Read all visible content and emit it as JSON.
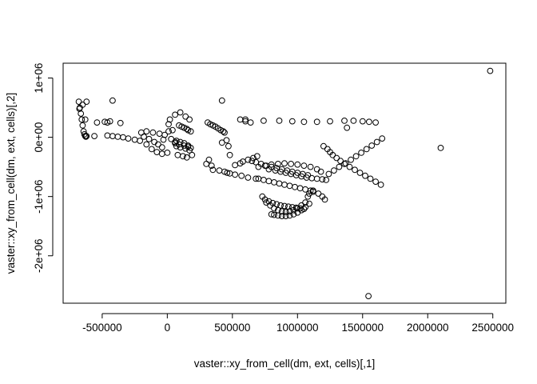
{
  "chart_data": {
    "type": "scatter",
    "title": "",
    "xlabel": "vaster::xy_from_cell(dm, ext, cells)[,1]",
    "ylabel": "vaster::xy_from_cell(dm, ext, cells)[,2]",
    "xlim": [
      -800000,
      2600000
    ],
    "ylim": [
      -2800000,
      1250000
    ],
    "xticks": [
      -500000,
      0,
      500000,
      1000000,
      1500000,
      2000000,
      2500000
    ],
    "xtick_labels": [
      "-500000",
      "0",
      "500000",
      "1000000",
      "1500000",
      "2000000",
      "2500000"
    ],
    "yticks": [
      -2000000,
      -1000000,
      0,
      1000000
    ],
    "ytick_labels": [
      "-2e+06",
      "-1e+06",
      "0e+00",
      "1e+06"
    ],
    "marker": "open-circle",
    "grid": false,
    "series": [
      {
        "x": [
          -680000,
          -672000,
          -664000,
          -657000,
          -650000,
          -643000,
          -637000,
          -630000,
          -625000,
          -620000,
          -630000,
          -650000,
          -675000,
          -560000,
          -460000,
          -420000,
          -380000,
          -340000,
          -300000,
          -250000,
          -210000,
          -160000,
          -120000,
          -80000,
          -40000,
          0,
          -40000,
          -70000,
          -100000,
          -140000,
          -180000,
          -200000,
          -160000,
          -110000,
          -60000,
          -20000,
          10000,
          40000,
          20000,
          60000,
          100000,
          140000,
          170000,
          90000,
          110000,
          130000,
          150000,
          160000,
          180000,
          70000,
          100000,
          130000,
          160000,
          180000,
          80000,
          120000,
          150000,
          190000,
          70000,
          100000,
          140000,
          170000,
          60000,
          90000,
          130000,
          160000,
          310000,
          330000,
          350000,
          370000,
          390000,
          410000,
          430000,
          440000,
          455000,
          470000,
          480000,
          320000,
          300000,
          340000,
          520000,
          560000,
          580000,
          620000,
          660000,
          690000,
          350000,
          400000,
          440000,
          460000,
          480000,
          520000,
          570000,
          620000,
          680000,
          560000,
          600000,
          640000,
          700000,
          750000,
          800000,
          850000,
          900000,
          950000,
          1000000,
          1050000,
          1100000,
          1150000,
          1180000,
          1240000,
          1280000,
          1320000,
          1370000,
          1410000,
          1450000,
          1490000,
          1530000,
          1570000,
          1610000,
          1650000,
          1200000,
          1230000,
          1250000,
          1270000,
          1300000,
          1330000,
          1360000,
          1400000,
          1440000,
          1480000,
          1520000,
          1560000,
          1600000,
          1640000,
          780000,
          830000,
          870000,
          910000,
          950000,
          990000,
          1030000,
          1070000,
          1110000,
          1150000,
          1190000,
          1220000,
          1120000,
          1160000,
          1190000,
          1210000,
          700000,
          740000,
          780000,
          820000,
          860000,
          900000,
          940000,
          980000,
          1020000,
          1060000,
          1100000,
          1120000,
          730000,
          760000,
          790000,
          820000,
          850000,
          880000,
          910000,
          940000,
          970000,
          1000000,
          1030000,
          1060000,
          1080000,
          1090000,
          750000,
          780000,
          810000,
          840000,
          870000,
          900000,
          930000,
          960000,
          990000,
          1020000,
          1050000,
          650000,
          680000,
          720000,
          760000,
          800000,
          840000,
          880000,
          920000,
          960000,
          1000000,
          1040000,
          1080000,
          800000,
          820000,
          850000,
          880000,
          910000,
          940000,
          970000,
          1000000,
          1030000,
          1060000,
          1090000,
          -620000,
          -420000,
          420000,
          600000,
          740000,
          860000,
          960000,
          1050000,
          1150000,
          1250000,
          1360000,
          1430000,
          1500000,
          1550000,
          1600000,
          1380000,
          -480000,
          -460000,
          -540000,
          -440000,
          -360000,
          10000,
          60000,
          420000,
          -30000,
          30000,
          2100000,
          2480000,
          1545000
        ],
        "y": [
          600000,
          500000,
          400000,
          300000,
          200000,
          100000,
          50000,
          20000,
          10000,
          20000,
          300000,
          550000,
          480000,
          20000,
          30000,
          20000,
          10000,
          0,
          -20000,
          -40000,
          -60000,
          -120000,
          -200000,
          -250000,
          -280000,
          -260000,
          -170000,
          -120000,
          -80000,
          -30000,
          10000,
          80000,
          100000,
          80000,
          60000,
          40000,
          100000,
          120000,
          300000,
          380000,
          420000,
          350000,
          300000,
          200000,
          180000,
          160000,
          140000,
          120000,
          100000,
          -60000,
          -80000,
          -100000,
          -140000,
          -180000,
          -300000,
          -320000,
          -340000,
          -300000,
          -150000,
          -170000,
          -190000,
          -220000,
          -100000,
          -120000,
          -140000,
          -160000,
          250000,
          220000,
          200000,
          180000,
          150000,
          120000,
          100000,
          80000,
          -50000,
          -150000,
          -300000,
          -380000,
          -450000,
          -480000,
          -470000,
          -440000,
          -410000,
          -380000,
          -350000,
          -320000,
          -550000,
          -560000,
          -580000,
          -600000,
          -610000,
          -630000,
          -650000,
          -680000,
          -700000,
          300000,
          270000,
          250000,
          -500000,
          -480000,
          -460000,
          -450000,
          -440000,
          -450000,
          -460000,
          -480000,
          -500000,
          -540000,
          -580000,
          -620000,
          -560000,
          -500000,
          -440000,
          -380000,
          -320000,
          -260000,
          -200000,
          -140000,
          -80000,
          -20000,
          -150000,
          -200000,
          -250000,
          -300000,
          -350000,
          -400000,
          -450000,
          -500000,
          -550000,
          -600000,
          -650000,
          -700000,
          -750000,
          -800000,
          -540000,
          -560000,
          -580000,
          -600000,
          -620000,
          -640000,
          -660000,
          -680000,
          -690000,
          -700000,
          -710000,
          -720000,
          -900000,
          -950000,
          -1000000,
          -1050000,
          -700000,
          -720000,
          -740000,
          -760000,
          -780000,
          -800000,
          -820000,
          -840000,
          -860000,
          -880000,
          -900000,
          -920000,
          -1000000,
          -1100000,
          -1150000,
          -1200000,
          -1230000,
          -1250000,
          -1260000,
          -1250000,
          -1230000,
          -1200000,
          -1150000,
          -1100000,
          -1000000,
          -950000,
          -1050000,
          -1080000,
          -1110000,
          -1130000,
          -1150000,
          -1160000,
          -1170000,
          -1180000,
          -1190000,
          -1200000,
          -1210000,
          -400000,
          -420000,
          -450000,
          -480000,
          -500000,
          -520000,
          -540000,
          -560000,
          -580000,
          -600000,
          -620000,
          -640000,
          -1300000,
          -1310000,
          -1320000,
          -1330000,
          -1330000,
          -1320000,
          -1300000,
          -1270000,
          -1230000,
          -1180000,
          -1120000,
          600000,
          620000,
          620000,
          300000,
          280000,
          280000,
          270000,
          260000,
          260000,
          270000,
          280000,
          280000,
          270000,
          260000,
          250000,
          160000,
          260000,
          250000,
          250000,
          270000,
          240000,
          220000,
          -80000,
          -90000,
          -40000,
          -30000,
          -180000,
          1120000,
          -2680000
        ]
      }
    ]
  }
}
